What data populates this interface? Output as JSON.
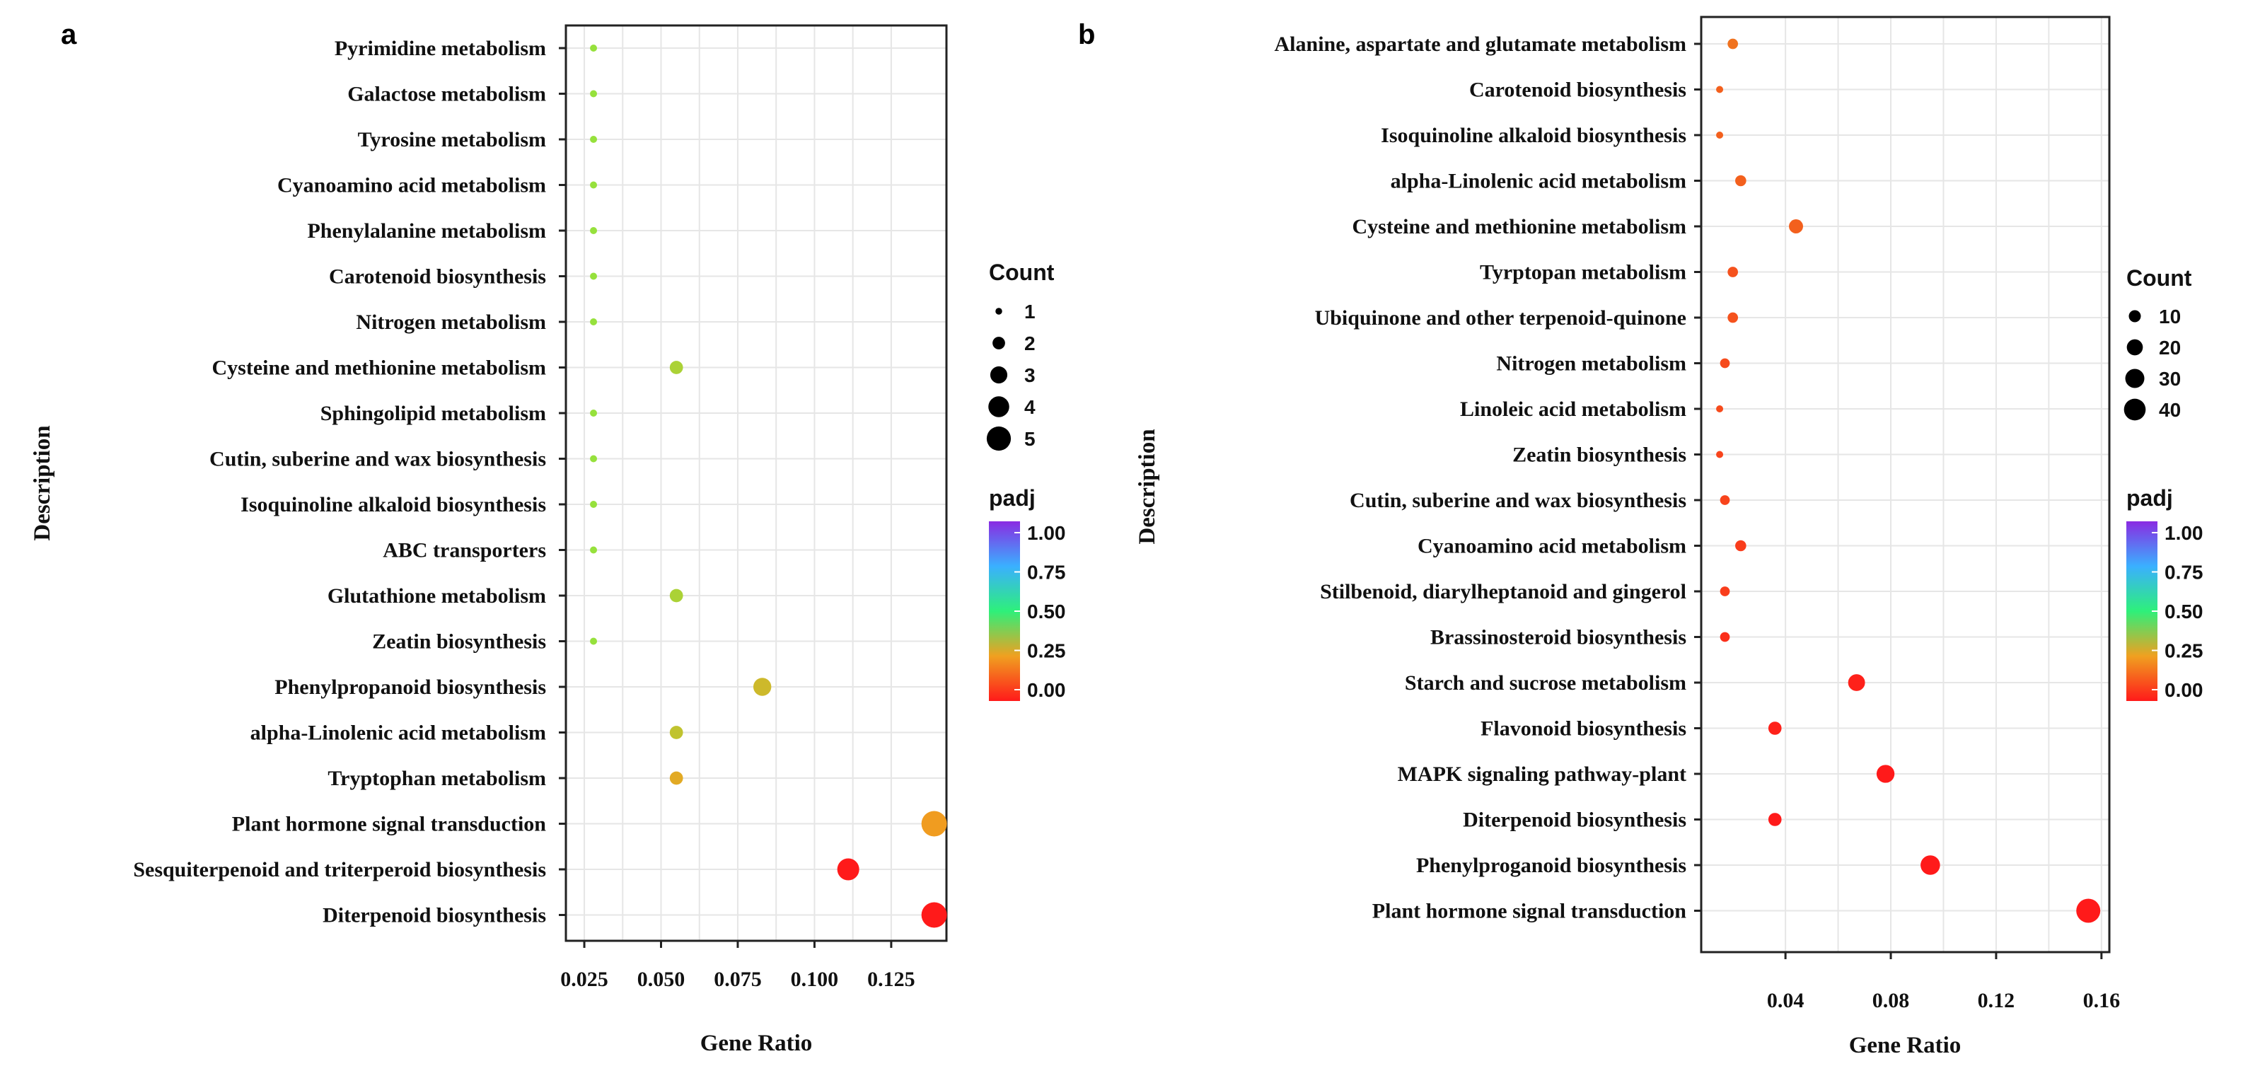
{
  "chart_data": [
    {
      "type": "scatter",
      "panel_label": "a",
      "xlabel": "Gene Ratio",
      "ylabel": "Description",
      "xlim": [
        0.019,
        0.143
      ],
      "xticks": [
        0.025,
        0.05,
        0.075,
        0.1,
        0.125
      ],
      "xtick_labels": [
        "0.025",
        "0.050",
        "0.075",
        "0.100",
        "0.125"
      ],
      "grid": true,
      "color_scale": {
        "title": "padj",
        "min": 0,
        "max": 1,
        "ticks": [
          "1.00",
          "0.75",
          "0.50",
          "0.25",
          "0.00"
        ]
      },
      "size_legend": {
        "title": "Count",
        "values": [
          1,
          2,
          3,
          4,
          5
        ]
      },
      "points": [
        {
          "description": "Pyrimidine metabolism",
          "gene_ratio": 0.028,
          "count": 1,
          "padj": 0.38
        },
        {
          "description": "Galactose metabolism",
          "gene_ratio": 0.028,
          "count": 1,
          "padj": 0.38
        },
        {
          "description": "Tyrosine metabolism",
          "gene_ratio": 0.028,
          "count": 1,
          "padj": 0.38
        },
        {
          "description": "Cyanoamino acid metabolism",
          "gene_ratio": 0.028,
          "count": 1,
          "padj": 0.38
        },
        {
          "description": "Phenylalanine metabolism",
          "gene_ratio": 0.028,
          "count": 1,
          "padj": 0.38
        },
        {
          "description": "Carotenoid biosynthesis",
          "gene_ratio": 0.028,
          "count": 1,
          "padj": 0.38
        },
        {
          "description": "Nitrogen metabolism",
          "gene_ratio": 0.028,
          "count": 1,
          "padj": 0.38
        },
        {
          "description": "Cysteine and methionine metabolism",
          "gene_ratio": 0.055,
          "count": 2,
          "padj": 0.35
        },
        {
          "description": "Sphingolipid metabolism",
          "gene_ratio": 0.028,
          "count": 1,
          "padj": 0.38
        },
        {
          "description": "Cutin, suberine and wax biosynthesis",
          "gene_ratio": 0.028,
          "count": 1,
          "padj": 0.38
        },
        {
          "description": "Isoquinoline alkaloid biosynthesis",
          "gene_ratio": 0.028,
          "count": 1,
          "padj": 0.38
        },
        {
          "description": "ABC transporters",
          "gene_ratio": 0.028,
          "count": 1,
          "padj": 0.38
        },
        {
          "description": "Glutathione metabolism",
          "gene_ratio": 0.055,
          "count": 2,
          "padj": 0.35
        },
        {
          "description": "Zeatin biosynthesis",
          "gene_ratio": 0.028,
          "count": 1,
          "padj": 0.38
        },
        {
          "description": "Phenylpropanoid biosynthesis",
          "gene_ratio": 0.083,
          "count": 3,
          "padj": 0.3
        },
        {
          "description": "alpha-Linolenic acid metabolism",
          "gene_ratio": 0.055,
          "count": 2,
          "padj": 0.32
        },
        {
          "description": "Tryptophan metabolism",
          "gene_ratio": 0.055,
          "count": 2,
          "padj": 0.27
        },
        {
          "description": "Plant hormone signal transduction",
          "gene_ratio": 0.139,
          "count": 5,
          "padj": 0.24
        },
        {
          "description": "Sesquiterpenoid and triterperoid biosynthesis",
          "gene_ratio": 0.111,
          "count": 4,
          "padj": 0.0
        },
        {
          "description": "Diterpenoid biosynthesis",
          "gene_ratio": 0.139,
          "count": 5,
          "padj": 0.0
        }
      ]
    },
    {
      "type": "scatter",
      "panel_label": "b",
      "xlabel": "Gene Ratio",
      "ylabel": "Description",
      "xlim": [
        0.008,
        0.163
      ],
      "xticks": [
        0.04,
        0.08,
        0.12,
        0.16
      ],
      "xtick_labels": [
        "0.04",
        "0.08",
        "0.12",
        "0.16"
      ],
      "grid": true,
      "color_scale": {
        "title": "padj",
        "min": 0,
        "max": 1,
        "ticks": [
          "1.00",
          "0.75",
          "0.50",
          "0.25",
          "0.00"
        ]
      },
      "size_legend": {
        "title": "Count",
        "values": [
          10,
          20,
          30,
          40
        ]
      },
      "points": [
        {
          "description": "Alanine, aspartate and glutamate metabolism",
          "gene_ratio": 0.02,
          "count": 6,
          "padj": 0.13
        },
        {
          "description": "Carotenoid biosynthesis",
          "gene_ratio": 0.015,
          "count": 2,
          "padj": 0.1
        },
        {
          "description": "Isoquinoline alkaloid biosynthesis",
          "gene_ratio": 0.015,
          "count": 2,
          "padj": 0.1
        },
        {
          "description": "alpha-Linolenic acid metabolism",
          "gene_ratio": 0.023,
          "count": 7,
          "padj": 0.1
        },
        {
          "description": "Cysteine and methionine metabolism",
          "gene_ratio": 0.044,
          "count": 13,
          "padj": 0.1
        },
        {
          "description": "Tyrptopan metabolism",
          "gene_ratio": 0.02,
          "count": 6,
          "padj": 0.08
        },
        {
          "description": "Ubiquinone and other terpenoid-quinone",
          "gene_ratio": 0.02,
          "count": 6,
          "padj": 0.08
        },
        {
          "description": "Nitrogen metabolism",
          "gene_ratio": 0.017,
          "count": 5,
          "padj": 0.07
        },
        {
          "description": "Linoleic acid metabolism",
          "gene_ratio": 0.015,
          "count": 2,
          "padj": 0.07
        },
        {
          "description": "Zeatin biosynthesis",
          "gene_ratio": 0.015,
          "count": 2,
          "padj": 0.06
        },
        {
          "description": "Cutin, suberine and wax biosynthesis",
          "gene_ratio": 0.017,
          "count": 5,
          "padj": 0.06
        },
        {
          "description": "Cyanoamino acid metabolism",
          "gene_ratio": 0.023,
          "count": 7,
          "padj": 0.05
        },
        {
          "description": "Stilbenoid, diarylheptanoid and gingerol",
          "gene_ratio": 0.017,
          "count": 5,
          "padj": 0.05
        },
        {
          "description": "Brassinosteroid biosynthesis",
          "gene_ratio": 0.017,
          "count": 5,
          "padj": 0.03
        },
        {
          "description": "Starch and sucrose metabolism",
          "gene_ratio": 0.067,
          "count": 20,
          "padj": 0.01
        },
        {
          "description": "Flavonoid biosynthesis",
          "gene_ratio": 0.036,
          "count": 11,
          "padj": 0.01
        },
        {
          "description": "MAPK signaling pathway-plant",
          "gene_ratio": 0.078,
          "count": 23,
          "padj": 0.0
        },
        {
          "description": "Diterpenoid biosynthesis",
          "gene_ratio": 0.036,
          "count": 11,
          "padj": 0.0
        },
        {
          "description": "Phenylproganoid biosynthesis",
          "gene_ratio": 0.095,
          "count": 28,
          "padj": 0.0
        },
        {
          "description": "Plant hormone signal transduction",
          "gene_ratio": 0.155,
          "count": 45,
          "padj": 0.0
        }
      ]
    }
  ]
}
